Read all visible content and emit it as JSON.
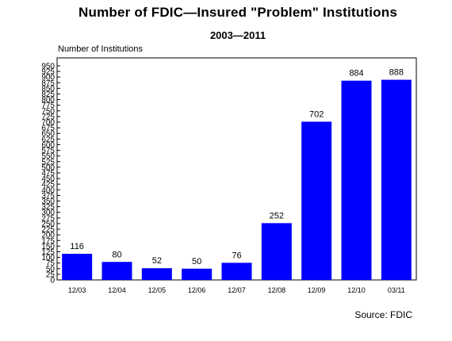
{
  "chart_data": {
    "type": "bar",
    "title": "Number of FDIC—Insured \"Problem\" Institutions",
    "subtitle": "2003—2011",
    "ylabel": "Number of Institutions",
    "xlabel": "",
    "categories": [
      "12/03",
      "12/04",
      "12/05",
      "12/06",
      "12/07",
      "12/08",
      "12/09",
      "12/10",
      "03/11"
    ],
    "values": [
      116,
      80,
      52,
      50,
      76,
      252,
      702,
      884,
      888
    ],
    "data_labels": [
      "116",
      "80",
      "52",
      "50",
      "76",
      "252",
      "702",
      "884",
      "888"
    ],
    "ylim": [
      0,
      985
    ],
    "y_ticks": [
      0,
      25,
      50,
      75,
      100,
      125,
      150,
      175,
      200,
      225,
      250,
      275,
      300,
      325,
      350,
      375,
      400,
      425,
      450,
      475,
      500,
      525,
      550,
      575,
      600,
      625,
      650,
      675,
      700,
      725,
      750,
      775,
      800,
      825,
      850,
      875,
      900,
      925,
      950
    ],
    "y_tick_labels": [
      "0",
      "25",
      "50",
      "75",
      "100",
      "125",
      "150",
      "175",
      "200",
      "225",
      "250",
      "275",
      "300",
      "325",
      "350",
      "375",
      "400",
      "425",
      "450",
      "475",
      "500",
      "525",
      "550",
      "575",
      "600",
      "625",
      "650",
      "675",
      "700",
      "725",
      "750",
      "775",
      "800",
      "825",
      "850",
      "875",
      "900",
      "925",
      "950"
    ],
    "grid": false,
    "bar_color": "#0000ff",
    "source": "Source: FDIC"
  }
}
